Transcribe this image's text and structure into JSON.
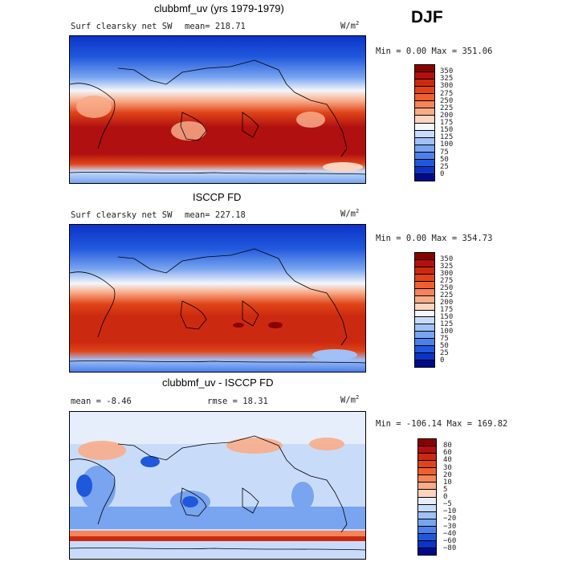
{
  "season": "DJF",
  "panels": [
    {
      "title": "clubbmf_uv (yrs 1979-1979)",
      "field": "Surf clearsky net SW",
      "stat1": "mean= 218.71",
      "stat2": "",
      "units": "W/m",
      "units_exp": "2",
      "minmax": "Min =    0.00 Max = 351.06",
      "palette": "full",
      "ticks": [
        "350",
        "325",
        "300",
        "275",
        "250",
        "225",
        "200",
        "175",
        "150",
        "125",
        "100",
        "75",
        "50",
        "25",
        "0"
      ]
    },
    {
      "title": "ISCCP FD",
      "field": "Surf clearsky net SW",
      "stat1": "mean= 227.18",
      "stat2": "",
      "units": "W/m",
      "units_exp": "2",
      "minmax": "Min =    0.00 Max = 354.73",
      "palette": "full",
      "ticks": [
        "350",
        "325",
        "300",
        "275",
        "250",
        "225",
        "200",
        "175",
        "150",
        "125",
        "100",
        "75",
        "50",
        "25",
        "0"
      ]
    },
    {
      "title": "clubbmf_uv - ISCCP FD",
      "field": "",
      "stat1": "mean =   -8.46",
      "stat2": "rmse =   18.31",
      "units": "W/m",
      "units_exp": "2",
      "minmax": "Min = -106.14 Max = 169.82",
      "palette": "diff",
      "ticks": [
        "80",
        "60",
        "40",
        "30",
        "20",
        "10",
        "5",
        "0",
        "−5",
        "−10",
        "−20",
        "−30",
        "−40",
        "−60",
        "−80"
      ]
    }
  ],
  "colors": {
    "full": [
      "#8a0000",
      "#b01010",
      "#cc2a10",
      "#e04418",
      "#ee6030",
      "#f4845a",
      "#f8ac8a",
      "#fcd4c0",
      "#f4f6fa",
      "#c8dcfa",
      "#a0c0f6",
      "#78a4f0",
      "#4c80ea",
      "#2058dc",
      "#0c34c8",
      "#000a8c"
    ],
    "diff": [
      "#8a0000",
      "#b01010",
      "#cc2a10",
      "#e04418",
      "#ee6030",
      "#f4845a",
      "#f8ac8a",
      "#fcd4c0",
      "#e6eefc",
      "#c8dcfa",
      "#a0c0f6",
      "#78a4f0",
      "#4c80ea",
      "#2058dc",
      "#0c34c8",
      "#000a8c"
    ]
  }
}
